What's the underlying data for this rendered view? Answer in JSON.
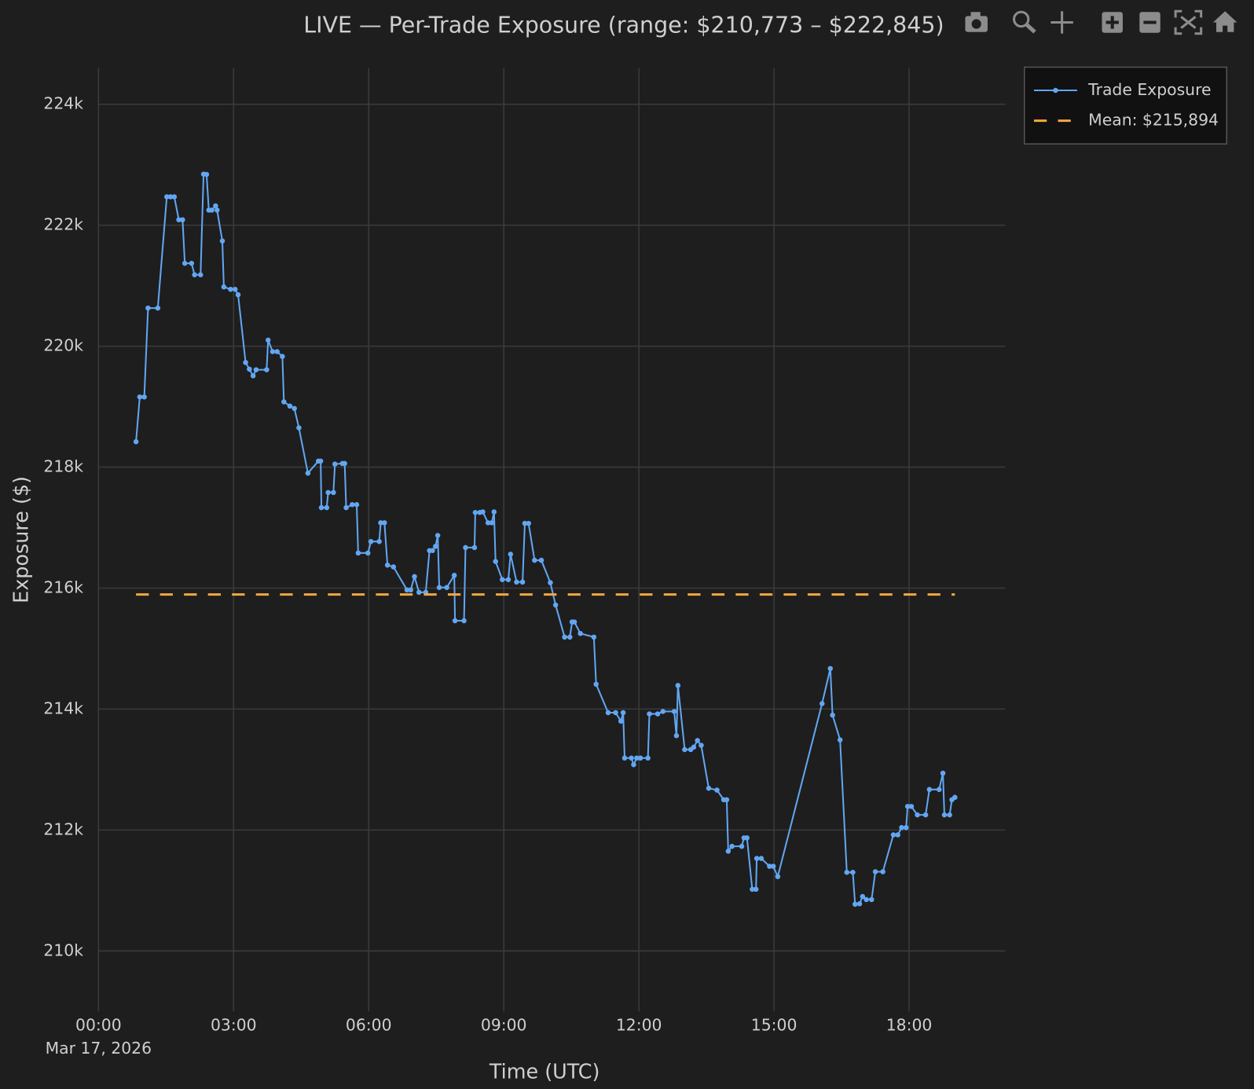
{
  "chart_data": {
    "type": "line",
    "title": "LIVE — Per-Trade Exposure (range: $210,773 – $222,845)",
    "x_label": "Time (UTC)",
    "y_label": "Exposure ($)",
    "x_date_label": "Mar 17, 2026",
    "xlim": [
      "00:00",
      "20:08"
    ],
    "xticks": [
      "00:00",
      "03:00",
      "06:00",
      "09:00",
      "12:00",
      "15:00",
      "18:00"
    ],
    "ylim": [
      209000,
      224600
    ],
    "yticks": [
      {
        "value": 210000,
        "label": "210k"
      },
      {
        "value": 212000,
        "label": "212k"
      },
      {
        "value": 214000,
        "label": "214k"
      },
      {
        "value": 216000,
        "label": "216k"
      },
      {
        "value": 218000,
        "label": "218k"
      },
      {
        "value": 220000,
        "label": "220k"
      },
      {
        "value": 222000,
        "label": "222k"
      },
      {
        "value": 224000,
        "label": "224k"
      }
    ],
    "grid": true,
    "legend": "top-right",
    "series": [
      {
        "name": "Trade Exposure",
        "color": "#62a6f2",
        "markers": true,
        "dash": false,
        "x": [
          "00:50",
          "00:55",
          "01:01",
          "01:06",
          "01:19",
          "01:31",
          "01:36",
          "01:41",
          "01:47",
          "01:52",
          "01:55",
          "02:04",
          "02:08",
          "02:16",
          "02:20",
          "02:24",
          "02:27",
          "02:31",
          "02:36",
          "02:38",
          "02:45",
          "02:47",
          "02:56",
          "03:02",
          "03:06",
          "03:16",
          "03:21",
          "03:26",
          "03:30",
          "03:44",
          "03:46",
          "03:52",
          "03:58",
          "04:05",
          "04:07",
          "04:15",
          "04:21",
          "04:27",
          "04:39",
          "04:53",
          "04:56",
          "04:57",
          "05:04",
          "05:06",
          "05:13",
          "05:15",
          "05:25",
          "05:28",
          "05:30",
          "05:38",
          "05:44",
          "05:46",
          "05:59",
          "06:03",
          "06:14",
          "06:16",
          "06:21",
          "06:25",
          "06:33",
          "06:51",
          "06:56",
          "07:01",
          "07:07",
          "07:16",
          "07:21",
          "07:25",
          "07:29",
          "07:32",
          "07:34",
          "07:44",
          "07:54",
          "07:55",
          "08:07",
          "08:09",
          "08:21",
          "08:22",
          "08:28",
          "08:32",
          "08:39",
          "08:44",
          "08:47",
          "08:49",
          "08:58",
          "09:06",
          "09:09",
          "09:17",
          "09:25",
          "09:28",
          "09:33",
          "09:41",
          "09:50",
          "10:02",
          "10:09",
          "10:21",
          "10:28",
          "10:31",
          "10:34",
          "10:42",
          "11:00",
          "11:03",
          "11:19",
          "11:29",
          "11:36",
          "11:39",
          "11:41",
          "11:50",
          "11:53",
          "11:57",
          "12:02",
          "12:12",
          "12:14",
          "12:25",
          "12:32",
          "12:47",
          "12:50",
          "12:52",
          "13:01",
          "13:09",
          "13:13",
          "13:18",
          "13:23",
          "13:33",
          "13:44",
          "13:53",
          "13:57",
          "13:59",
          "14:04",
          "14:17",
          "14:20",
          "14:24",
          "14:31",
          "14:36",
          "14:37",
          "14:43",
          "14:54",
          "14:59",
          "15:05",
          "16:04",
          "16:15",
          "16:18",
          "16:28",
          "16:37",
          "16:45",
          "16:48",
          "16:54",
          "16:58",
          "17:03",
          "17:10",
          "17:15",
          "17:25",
          "17:39",
          "17:45",
          "17:50",
          "17:56",
          "17:58",
          "18:03",
          "18:11",
          "18:22",
          "18:27",
          "18:40",
          "18:45",
          "18:47",
          "18:54",
          "18:57",
          "19:01"
        ],
        "values": [
          218420,
          219160,
          219160,
          220630,
          220630,
          222470,
          222470,
          222470,
          222090,
          222090,
          221370,
          221370,
          221180,
          221180,
          222845,
          222840,
          222250,
          222250,
          222320,
          222250,
          221740,
          220980,
          220940,
          220940,
          220850,
          219730,
          219620,
          219510,
          219610,
          219610,
          220100,
          219910,
          219910,
          219830,
          219080,
          219010,
          218970,
          218650,
          217900,
          218100,
          218100,
          217330,
          217330,
          217580,
          217580,
          218050,
          218060,
          218060,
          217330,
          217380,
          217380,
          216580,
          216580,
          216770,
          216770,
          217080,
          217080,
          216380,
          216350,
          215970,
          215970,
          216190,
          215930,
          215930,
          216620,
          216620,
          216690,
          216870,
          216010,
          216010,
          216210,
          215460,
          215460,
          216670,
          216670,
          217250,
          217250,
          217260,
          217080,
          217080,
          217260,
          216440,
          216140,
          216140,
          216560,
          216100,
          216100,
          217070,
          217070,
          216460,
          216460,
          216090,
          215720,
          215190,
          215190,
          215440,
          215440,
          215250,
          215190,
          214410,
          213940,
          213940,
          213800,
          213940,
          213190,
          213190,
          213080,
          213190,
          213190,
          213190,
          213920,
          213920,
          213960,
          213960,
          213560,
          214390,
          213330,
          213330,
          213370,
          213480,
          213400,
          212690,
          212660,
          212500,
          212500,
          211650,
          211730,
          211730,
          211870,
          211870,
          211020,
          211020,
          211530,
          211530,
          211400,
          211400,
          211230,
          214090,
          214670,
          213900,
          213490,
          211300,
          211300,
          210773,
          210780,
          210900,
          210850,
          210850,
          211310,
          211310,
          211920,
          211920,
          212040,
          212040,
          212390,
          212390,
          212250,
          212250,
          212670,
          212670,
          212940,
          212250,
          212250,
          212500,
          212540
        ]
      },
      {
        "name": "Mean: $215,894",
        "color": "#f5a742",
        "markers": false,
        "dash": true,
        "x": [
          "00:50",
          "19:01"
        ],
        "values": [
          215894,
          215894
        ]
      }
    ]
  }
}
